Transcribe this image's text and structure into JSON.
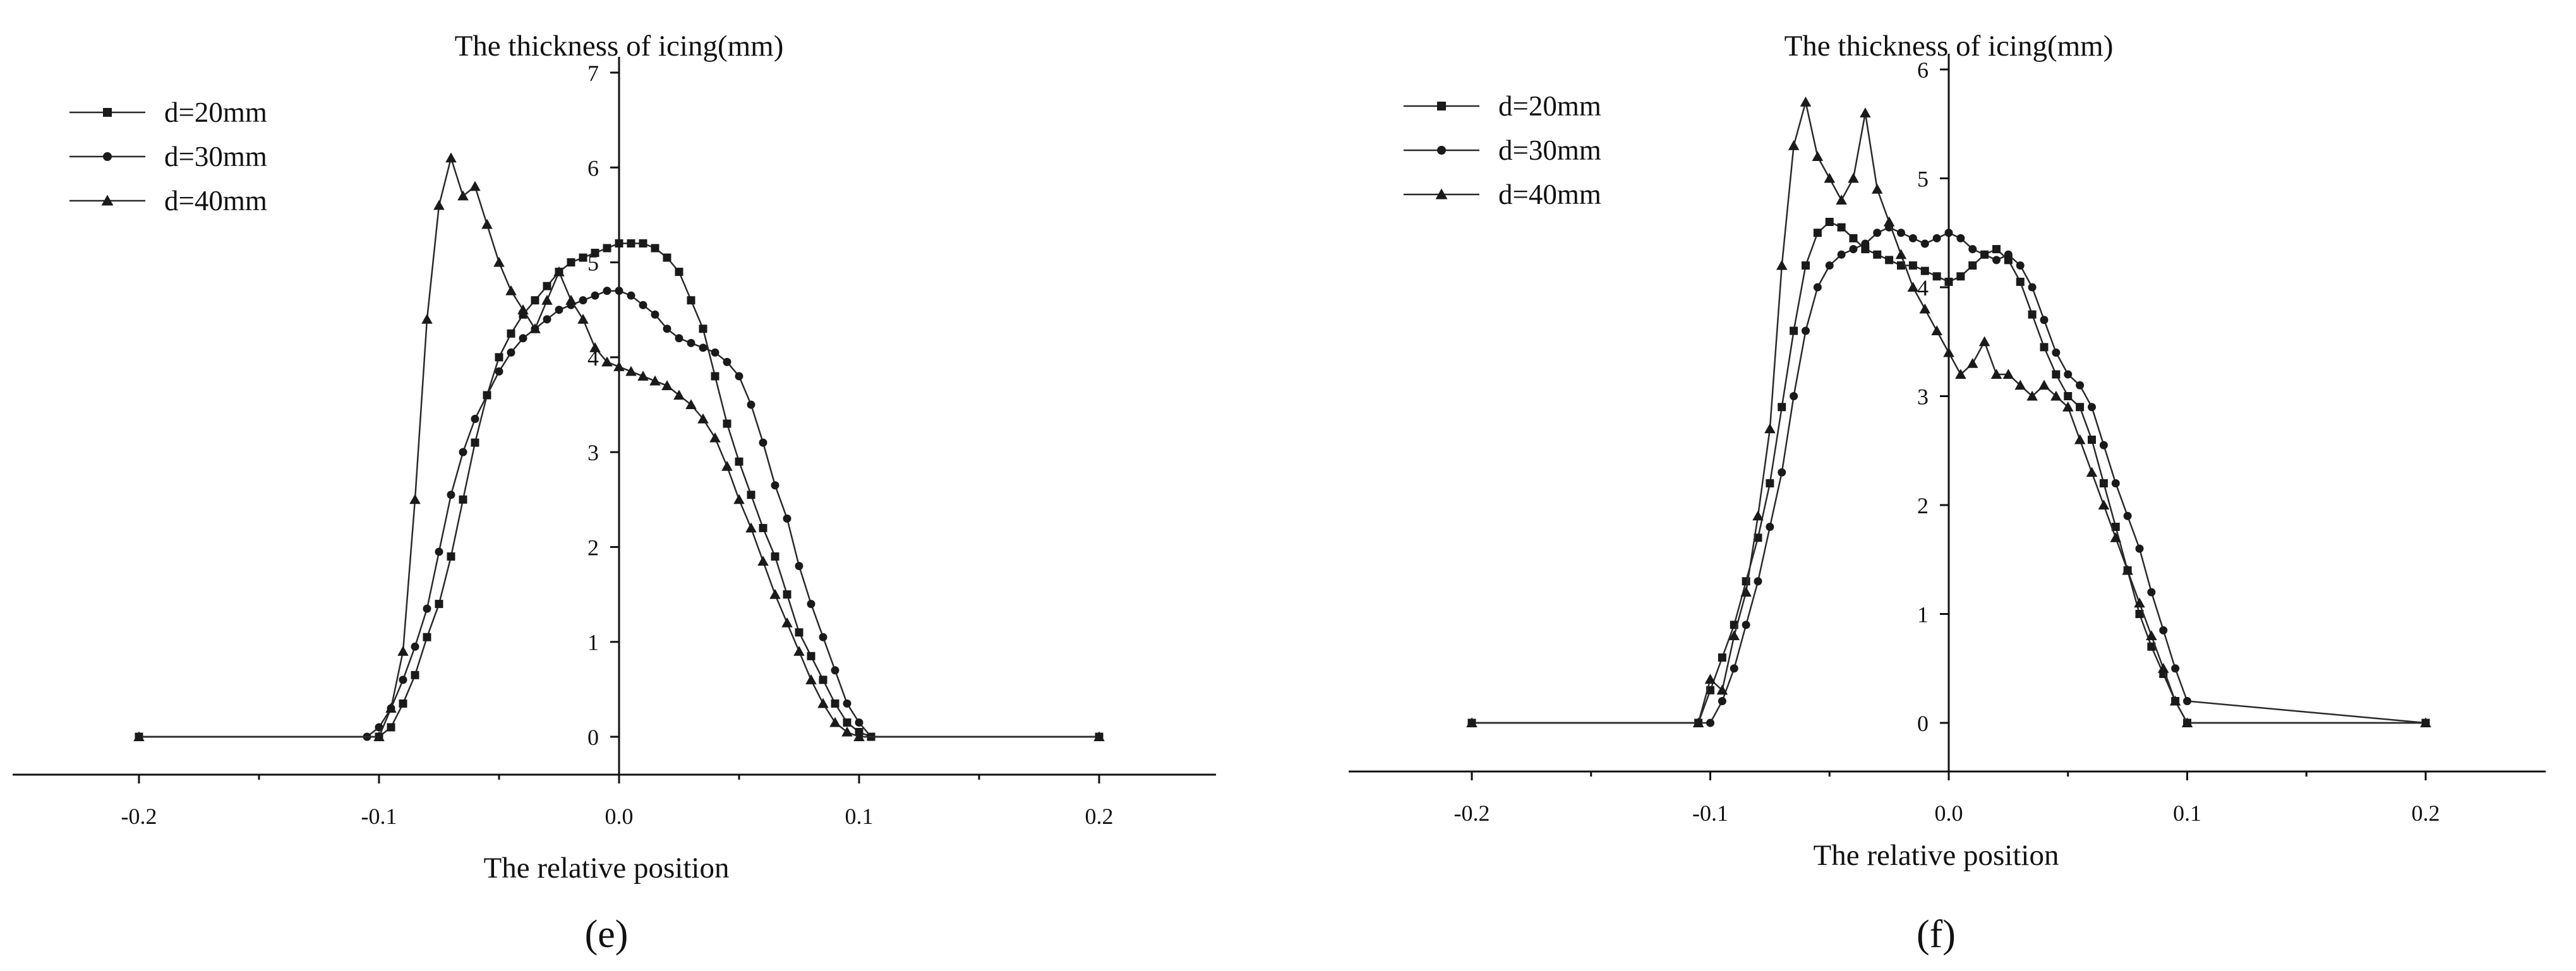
{
  "chart_data": [
    {
      "panel_label": "(e)",
      "type": "line",
      "title": "The thickness of icing(mm)",
      "xlabel": "The relative position",
      "ylabel": "",
      "xlim": [
        -0.25,
        0.25
      ],
      "ylim": [
        -0.3,
        7
      ],
      "x_ticks": [
        -0.2,
        -0.1,
        0.0,
        0.1,
        0.2
      ],
      "x_tick_labels": [
        "-0.2",
        "-0.1",
        "0.0",
        "0.1",
        "0.2"
      ],
      "y_ticks": [
        0,
        1,
        2,
        3,
        4,
        5,
        6,
        7
      ],
      "y_tick_labels": [
        "0",
        "1",
        "2",
        "3",
        "4",
        "5",
        "6",
        "7"
      ],
      "grid": false,
      "legend_position": "top-left",
      "series": [
        {
          "name": "d=20mm",
          "marker": "square",
          "x": [
            -0.2,
            -0.1,
            -0.095,
            -0.09,
            -0.085,
            -0.08,
            -0.075,
            -0.07,
            -0.065,
            -0.06,
            -0.055,
            -0.05,
            -0.045,
            -0.04,
            -0.035,
            -0.03,
            -0.025,
            -0.02,
            -0.015,
            -0.01,
            -0.005,
            0.0,
            0.005,
            0.01,
            0.015,
            0.02,
            0.025,
            0.03,
            0.035,
            0.04,
            0.045,
            0.05,
            0.055,
            0.06,
            0.065,
            0.07,
            0.075,
            0.08,
            0.085,
            0.09,
            0.095,
            0.1,
            0.105,
            0.2
          ],
          "y": [
            0,
            0,
            0.1,
            0.35,
            0.65,
            1.05,
            1.4,
            1.9,
            2.5,
            3.1,
            3.6,
            4.0,
            4.25,
            4.45,
            4.6,
            4.75,
            4.9,
            5.0,
            5.05,
            5.1,
            5.15,
            5.2,
            5.2,
            5.2,
            5.15,
            5.05,
            4.9,
            4.6,
            4.3,
            3.8,
            3.3,
            2.9,
            2.55,
            2.2,
            1.9,
            1.5,
            1.1,
            0.85,
            0.6,
            0.35,
            0.15,
            0.05,
            0,
            0
          ]
        },
        {
          "name": "d=30mm",
          "marker": "circle",
          "x": [
            -0.2,
            -0.105,
            -0.1,
            -0.095,
            -0.09,
            -0.085,
            -0.08,
            -0.075,
            -0.07,
            -0.065,
            -0.06,
            -0.055,
            -0.05,
            -0.045,
            -0.04,
            -0.035,
            -0.03,
            -0.025,
            -0.02,
            -0.015,
            -0.01,
            -0.005,
            0.0,
            0.005,
            0.01,
            0.015,
            0.02,
            0.025,
            0.03,
            0.035,
            0.04,
            0.045,
            0.05,
            0.055,
            0.06,
            0.065,
            0.07,
            0.075,
            0.08,
            0.085,
            0.09,
            0.095,
            0.1,
            0.105,
            0.2
          ],
          "y": [
            0,
            0,
            0.1,
            0.3,
            0.6,
            0.95,
            1.35,
            1.95,
            2.55,
            3.0,
            3.35,
            3.6,
            3.85,
            4.05,
            4.2,
            4.3,
            4.4,
            4.5,
            4.55,
            4.6,
            4.65,
            4.7,
            4.7,
            4.65,
            4.55,
            4.45,
            4.3,
            4.2,
            4.15,
            4.1,
            4.05,
            3.95,
            3.8,
            3.5,
            3.1,
            2.65,
            2.3,
            1.8,
            1.4,
            1.05,
            0.7,
            0.35,
            0.15,
            0,
            0
          ]
        },
        {
          "name": "d=40mm",
          "marker": "triangle",
          "x": [
            -0.2,
            -0.1,
            -0.095,
            -0.09,
            -0.085,
            -0.08,
            -0.075,
            -0.07,
            -0.065,
            -0.06,
            -0.055,
            -0.05,
            -0.045,
            -0.04,
            -0.035,
            -0.03,
            -0.025,
            -0.02,
            -0.015,
            -0.01,
            -0.005,
            0.0,
            0.005,
            0.01,
            0.015,
            0.02,
            0.025,
            0.03,
            0.035,
            0.04,
            0.045,
            0.05,
            0.055,
            0.06,
            0.065,
            0.07,
            0.075,
            0.08,
            0.085,
            0.09,
            0.095,
            0.1,
            0.2
          ],
          "y": [
            0,
            0,
            0.3,
            0.9,
            2.5,
            4.4,
            5.6,
            6.1,
            5.7,
            5.8,
            5.4,
            5.0,
            4.7,
            4.5,
            4.3,
            4.6,
            4.9,
            4.6,
            4.4,
            4.1,
            3.95,
            3.9,
            3.85,
            3.8,
            3.75,
            3.7,
            3.6,
            3.5,
            3.35,
            3.15,
            2.85,
            2.5,
            2.2,
            1.85,
            1.5,
            1.2,
            0.9,
            0.6,
            0.35,
            0.15,
            0.05,
            0,
            0
          ]
        }
      ]
    },
    {
      "panel_label": "(f)",
      "type": "line",
      "title": "The thickness of icing(mm)",
      "xlabel": "The relative position",
      "ylabel": "",
      "xlim": [
        -0.25,
        0.25
      ],
      "ylim": [
        -0.3,
        6.5
      ],
      "x_ticks": [
        -0.2,
        -0.1,
        0.0,
        0.1,
        0.2
      ],
      "x_tick_labels": [
        "-0.2",
        "-0.1",
        "0.0",
        "0.1",
        "0.2"
      ],
      "y_ticks": [
        0,
        1,
        2,
        3,
        4,
        5,
        6
      ],
      "y_tick_labels": [
        "0",
        "1",
        "2",
        "3",
        "4",
        "5",
        "6"
      ],
      "grid": false,
      "legend_position": "top-left",
      "series": [
        {
          "name": "d=20mm",
          "marker": "square",
          "x": [
            -0.2,
            -0.105,
            -0.1,
            -0.095,
            -0.09,
            -0.085,
            -0.08,
            -0.075,
            -0.07,
            -0.065,
            -0.06,
            -0.055,
            -0.05,
            -0.045,
            -0.04,
            -0.035,
            -0.03,
            -0.025,
            -0.02,
            -0.015,
            -0.01,
            -0.005,
            0.0,
            0.005,
            0.01,
            0.015,
            0.02,
            0.025,
            0.03,
            0.035,
            0.04,
            0.045,
            0.05,
            0.055,
            0.06,
            0.065,
            0.07,
            0.075,
            0.08,
            0.085,
            0.09,
            0.095,
            0.1,
            0.2
          ],
          "y": [
            0,
            0,
            0.3,
            0.6,
            0.9,
            1.3,
            1.7,
            2.2,
            2.9,
            3.6,
            4.2,
            4.5,
            4.6,
            4.55,
            4.45,
            4.35,
            4.3,
            4.25,
            4.2,
            4.2,
            4.15,
            4.1,
            4.05,
            4.1,
            4.2,
            4.3,
            4.35,
            4.25,
            4.05,
            3.75,
            3.45,
            3.2,
            3.0,
            2.9,
            2.6,
            2.2,
            1.8,
            1.4,
            1.0,
            0.7,
            0.45,
            0.2,
            0,
            0
          ]
        },
        {
          "name": "d=30mm",
          "marker": "circle",
          "x": [
            -0.2,
            -0.1,
            -0.095,
            -0.09,
            -0.085,
            -0.08,
            -0.075,
            -0.07,
            -0.065,
            -0.06,
            -0.055,
            -0.05,
            -0.045,
            -0.04,
            -0.035,
            -0.03,
            -0.025,
            -0.02,
            -0.015,
            -0.01,
            -0.005,
            0.0,
            0.005,
            0.01,
            0.015,
            0.02,
            0.025,
            0.03,
            0.035,
            0.04,
            0.045,
            0.05,
            0.055,
            0.06,
            0.065,
            0.07,
            0.075,
            0.08,
            0.085,
            0.09,
            0.095,
            0.1,
            0.2
          ],
          "y": [
            0,
            0,
            0.2,
            0.5,
            0.9,
            1.3,
            1.8,
            2.3,
            3.0,
            3.6,
            4.0,
            4.2,
            4.3,
            4.35,
            4.4,
            4.5,
            4.55,
            4.5,
            4.45,
            4.4,
            4.45,
            4.5,
            4.45,
            4.35,
            4.3,
            4.25,
            4.3,
            4.2,
            4.0,
            3.7,
            3.4,
            3.2,
            3.1,
            2.9,
            2.55,
            2.2,
            1.9,
            1.6,
            1.2,
            0.85,
            0.5,
            0.2,
            0
          ]
        },
        {
          "name": "d=40mm",
          "marker": "triangle",
          "x": [
            -0.2,
            -0.105,
            -0.1,
            -0.095,
            -0.09,
            -0.085,
            -0.08,
            -0.075,
            -0.07,
            -0.065,
            -0.06,
            -0.055,
            -0.05,
            -0.045,
            -0.04,
            -0.035,
            -0.03,
            -0.025,
            -0.02,
            -0.015,
            -0.01,
            -0.005,
            0.0,
            0.005,
            0.01,
            0.015,
            0.02,
            0.025,
            0.03,
            0.035,
            0.04,
            0.045,
            0.05,
            0.055,
            0.06,
            0.065,
            0.07,
            0.075,
            0.08,
            0.085,
            0.09,
            0.095,
            0.1,
            0.2
          ],
          "y": [
            0,
            0,
            0.4,
            0.3,
            0.8,
            1.2,
            1.9,
            2.7,
            4.2,
            5.3,
            5.7,
            5.2,
            5.0,
            4.8,
            5.0,
            5.6,
            4.9,
            4.6,
            4.3,
            4.0,
            3.8,
            3.6,
            3.4,
            3.2,
            3.3,
            3.5,
            3.2,
            3.2,
            3.1,
            3.0,
            3.1,
            3.0,
            2.9,
            2.6,
            2.3,
            2.0,
            1.7,
            1.4,
            1.1,
            0.8,
            0.5,
            0.2,
            0,
            0
          ]
        }
      ]
    }
  ]
}
